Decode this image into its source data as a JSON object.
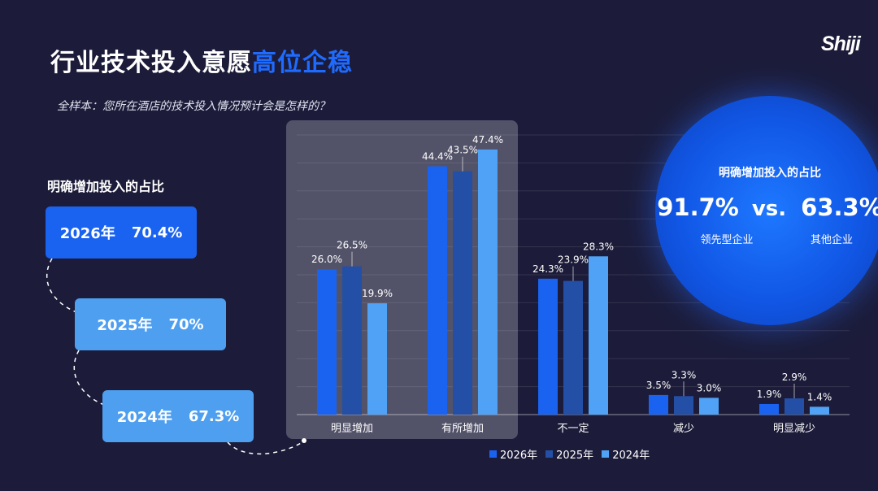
{
  "header": {
    "title_main": "行业技术投入意愿",
    "title_highlight": "高位企稳",
    "logo": "Shiji",
    "subtitle": "全样本：您所在酒店的技术投入情况预计会是怎样的？"
  },
  "side_panel": {
    "label": "明确增加投入的占比",
    "items": [
      {
        "year": "2026年",
        "value": "70.4%"
      },
      {
        "year": "2025年",
        "value": "70%"
      },
      {
        "year": "2024年",
        "value": "67.3%"
      }
    ]
  },
  "comparison": {
    "title": "明确增加投入的占比",
    "left_value": "91.7%",
    "vs": "vs.",
    "right_value": "63.3%",
    "left_caption": "领先型企业",
    "right_caption": "其他企业"
  },
  "colors": {
    "background": "#1c1c3a",
    "highlight": "#1f6bff",
    "series_2026": "#1a63f0",
    "series_2025": "#244fa6",
    "series_2024": "#4fa2f5"
  },
  "chart_data": {
    "type": "bar",
    "categories": [
      "明显增加",
      "有所增加",
      "不一定",
      "减少",
      "明显减少"
    ],
    "series": [
      {
        "name": "2026年",
        "values": [
          26.0,
          44.4,
          24.3,
          3.5,
          1.9
        ],
        "labels": [
          "26.0%",
          "44.4%",
          "24.3%",
          "3.5%",
          "1.9%"
        ],
        "color": "#1a63f0"
      },
      {
        "name": "2025年",
        "values": [
          26.5,
          43.5,
          23.9,
          3.3,
          2.9
        ],
        "labels": [
          "26.5%",
          "43.5%",
          "23.9%",
          "3.3%",
          "2.9%"
        ],
        "color": "#244fa6"
      },
      {
        "name": "2024年",
        "values": [
          19.9,
          47.4,
          28.3,
          3.0,
          1.4
        ],
        "labels": [
          "19.9%",
          "47.4%",
          "28.3%",
          "3.0%",
          "1.4%"
        ],
        "color": "#4fa2f5"
      }
    ],
    "highlighted_categories": [
      "明显增加",
      "有所增加"
    ],
    "ylim": [
      0,
      50
    ],
    "grid": true,
    "legend_position": "bottom"
  }
}
